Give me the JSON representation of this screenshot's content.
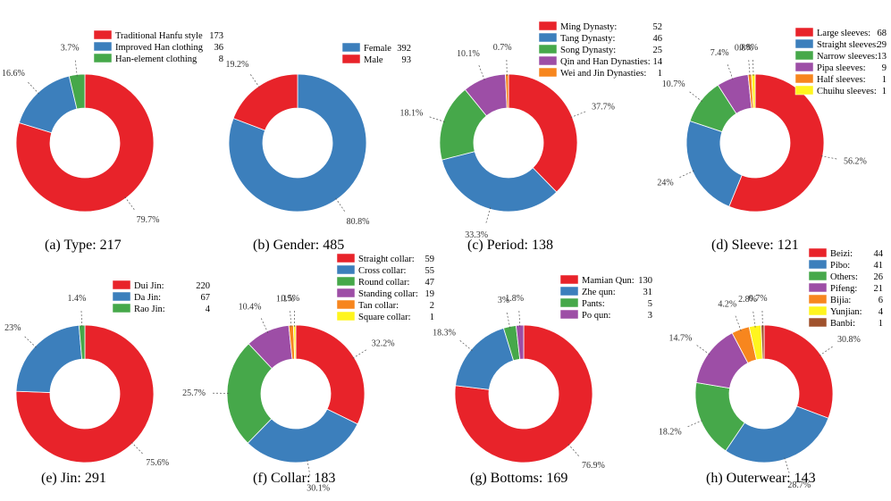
{
  "colors": {
    "red": "#E8232A",
    "blue": "#3C7FBC",
    "green": "#46A84A",
    "purple": "#9D4EA6",
    "orange": "#F7861E",
    "yellow": "#FFF51E",
    "brown": "#A0522D"
  },
  "chart_data": [
    {
      "type": "donut",
      "title": "Type",
      "caption": "(a) Type: 217",
      "categories": [
        "Traditional Hanfu style",
        "Improved Han clothing",
        "Han-element clothing"
      ],
      "values": [
        173,
        36,
        8
      ],
      "value_labels": [
        "173",
        "36",
        "8"
      ],
      "percent_labels": [
        "79.7%",
        "16.6%",
        "3.7%"
      ],
      "series_colors": [
        "red",
        "blue",
        "green"
      ]
    },
    {
      "type": "donut",
      "title": "Gender",
      "caption": "(b) Gender: 485",
      "categories": [
        "Female",
        "Male"
      ],
      "values": [
        392,
        93
      ],
      "value_labels": [
        "392",
        "93"
      ],
      "percent_labels": [
        "80.8%",
        "19.2%"
      ],
      "series_colors": [
        "blue",
        "red"
      ]
    },
    {
      "type": "donut",
      "title": "Period",
      "caption": "(c) Period: 138",
      "categories": [
        "Ming Dynasty:",
        "Tang Dynasty:",
        "Song Dynasty:",
        "Qin and Han Dynasties:",
        "Wei and Jin Dynasties:"
      ],
      "values": [
        52,
        46,
        25,
        14,
        1
      ],
      "value_labels": [
        "52",
        "46",
        "25",
        "14",
        "1"
      ],
      "percent_labels": [
        "37.7%",
        "33.3%",
        "18.1%",
        "10.1%",
        "0.7%"
      ],
      "series_colors": [
        "red",
        "blue",
        "green",
        "purple",
        "orange"
      ]
    },
    {
      "type": "donut",
      "title": "Sleeve",
      "caption": "(d) Sleeve: 121",
      "categories": [
        "Large sleeves:",
        "Straight sleeves:",
        "Narrow sleeves:",
        "Pipa sleeves:",
        "Half sleeves:",
        "Chuihu sleeves:"
      ],
      "values": [
        68,
        29,
        13,
        9,
        1,
        1
      ],
      "value_labels": [
        "68",
        "29",
        "13",
        "9",
        "1",
        "1"
      ],
      "percent_labels": [
        "56.2%",
        "24%",
        "10.7%",
        "7.4%",
        "0.8%",
        "0.8%"
      ],
      "series_colors": [
        "red",
        "blue",
        "green",
        "purple",
        "orange",
        "yellow"
      ]
    },
    {
      "type": "donut",
      "title": "Jin",
      "caption": "(e) Jin: 291",
      "categories": [
        "Dui Jin:",
        "Da Jin:",
        "Rao Jin:"
      ],
      "values": [
        220,
        67,
        4
      ],
      "value_labels": [
        "220",
        "67",
        "4"
      ],
      "percent_labels": [
        "75.6%",
        "23%",
        "1.4%"
      ],
      "series_colors": [
        "red",
        "blue",
        "green"
      ]
    },
    {
      "type": "donut",
      "title": "Collar",
      "caption": "(f) Collar: 183",
      "categories": [
        "Straight collar:",
        "Cross collar:",
        "Round collar:",
        "Standing collar:",
        "Tan collar:",
        "Square collar:"
      ],
      "values": [
        59,
        55,
        47,
        19,
        2,
        1
      ],
      "value_labels": [
        "59",
        "55",
        "47",
        "19",
        "2",
        "1"
      ],
      "percent_labels": [
        "32.2%",
        "30.1%",
        "25.7%",
        "10.4%",
        "1.1%",
        "0.5%"
      ],
      "series_colors": [
        "red",
        "blue",
        "green",
        "purple",
        "orange",
        "yellow"
      ]
    },
    {
      "type": "donut",
      "title": "Bottoms",
      "caption": "(g) Bottoms: 169",
      "categories": [
        "Mamian Qun:",
        "Zhe qun:",
        "Pants:",
        "Po qun:"
      ],
      "values": [
        130,
        31,
        5,
        3
      ],
      "value_labels": [
        "130",
        "31",
        "5",
        "3"
      ],
      "percent_labels": [
        "76.9%",
        "18.3%",
        "3%",
        "1.8%"
      ],
      "series_colors": [
        "red",
        "blue",
        "green",
        "purple"
      ]
    },
    {
      "type": "donut",
      "title": "Outerwear",
      "caption": "(h) Outerwear: 143",
      "categories": [
        "Beizi:",
        "Pibo:",
        "Others:",
        "Pifeng:",
        "Bijia:",
        "Yunjian:",
        "Banbi:"
      ],
      "values": [
        44,
        41,
        26,
        21,
        6,
        4,
        1
      ],
      "value_labels": [
        "44",
        "41",
        "26",
        "21",
        "6",
        "4",
        "1"
      ],
      "percent_labels": [
        "30.8%",
        "28.7%",
        "18.2%",
        "14.7%",
        "4.2%",
        "2.8%",
        "0.7%"
      ],
      "series_colors": [
        "red",
        "blue",
        "green",
        "purple",
        "orange",
        "yellow",
        "brown"
      ]
    }
  ]
}
